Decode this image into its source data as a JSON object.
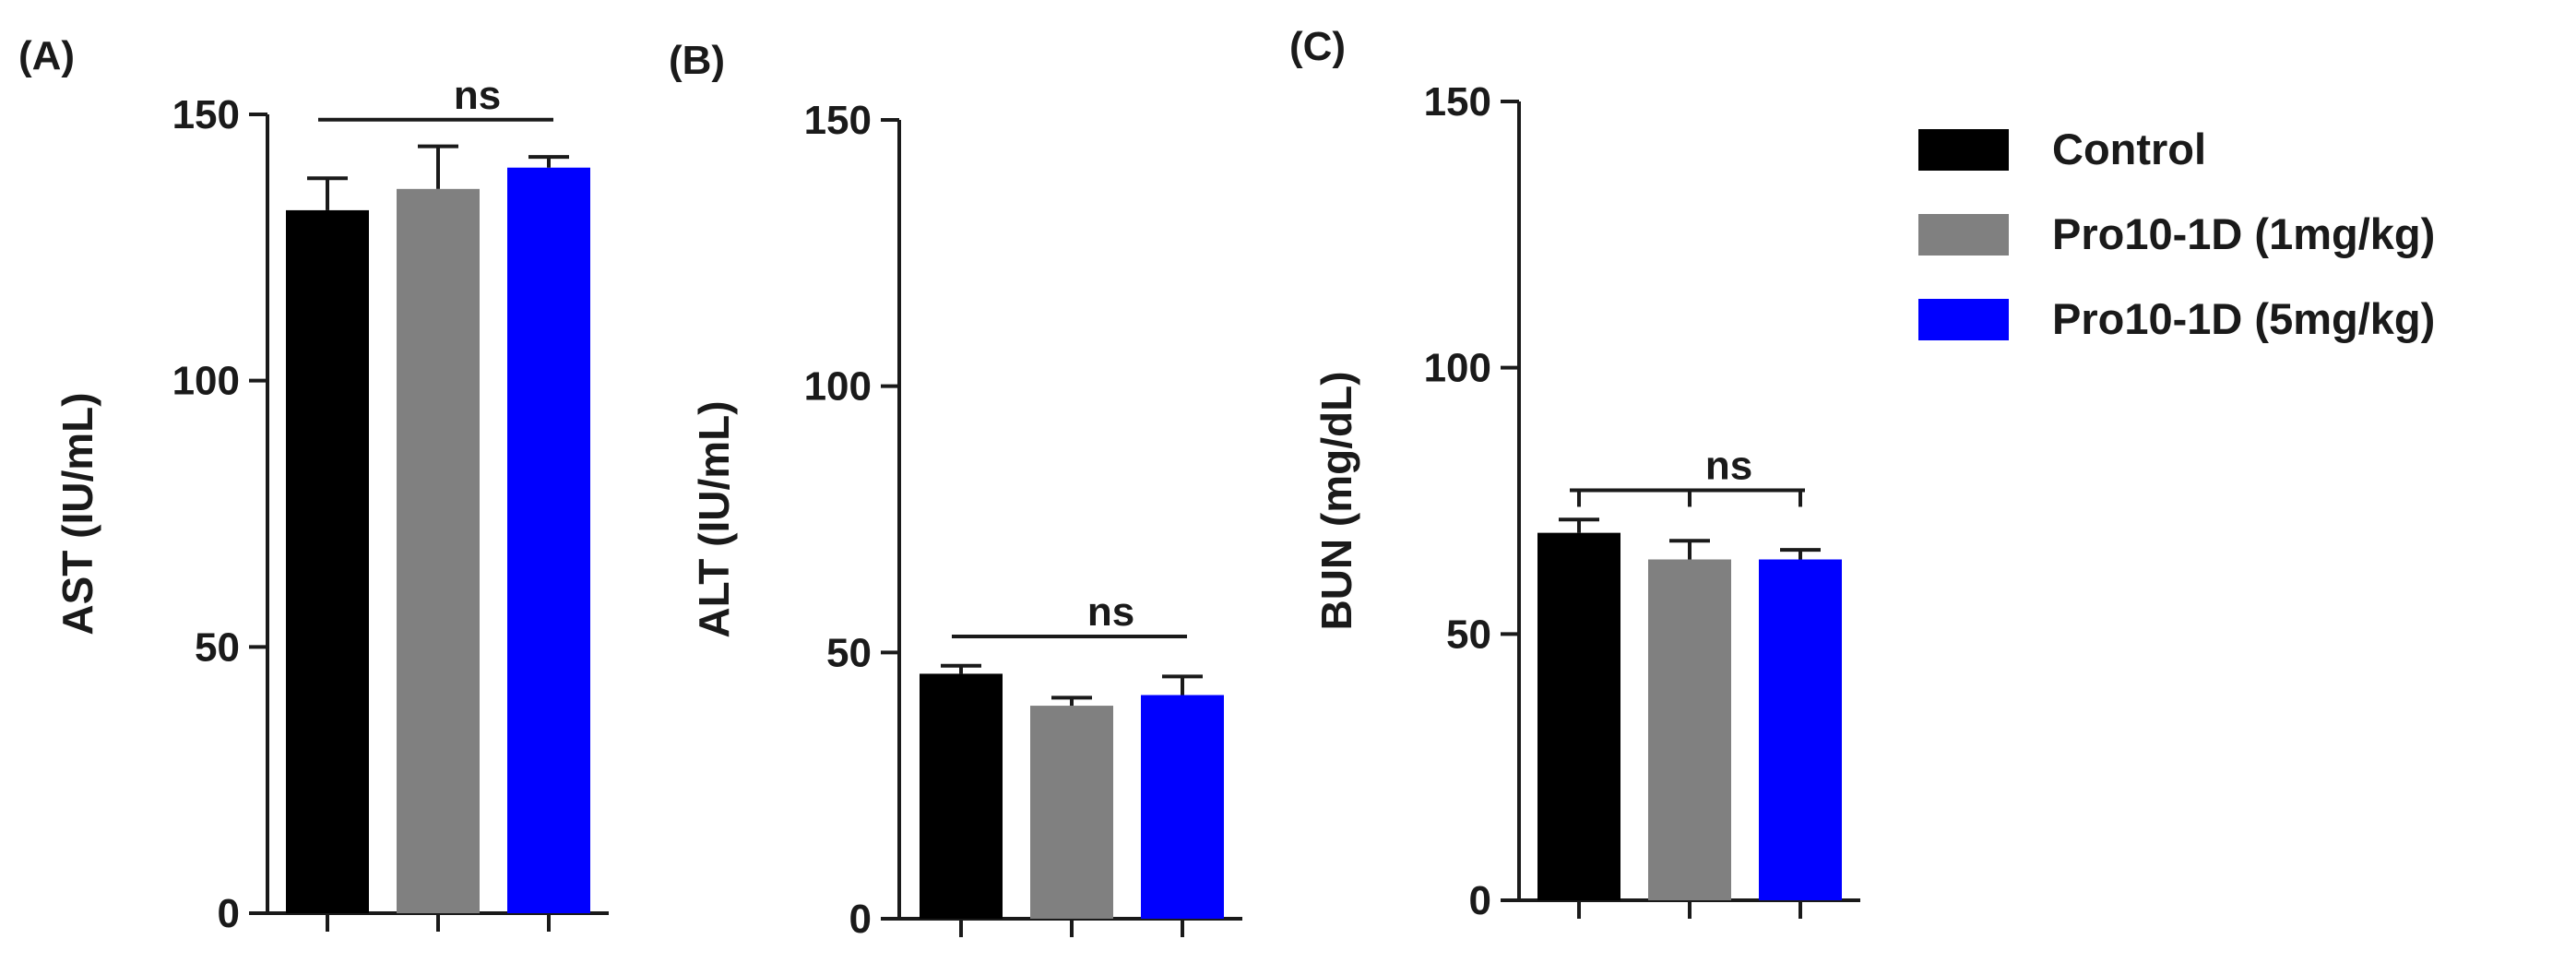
{
  "figure": {
    "legend": [
      {
        "label": "Control",
        "color": "#000000"
      },
      {
        "label": "Pro10-1D (1mg/kg)",
        "color": "#808080"
      },
      {
        "label": "Pro10-1D (5mg/kg)",
        "color": "#0000FF"
      }
    ]
  },
  "chart_data": [
    {
      "type": "bar",
      "panel_label": "(A)",
      "ylabel": "AST (IU/mL)",
      "ylim": [
        0,
        150
      ],
      "yticks": [
        0,
        50,
        100,
        150
      ],
      "categories": [
        "Control",
        "Pro10-1D (1mg/kg)",
        "Pro10-1D (5mg/kg)"
      ],
      "values": [
        132,
        136,
        140
      ],
      "errors": [
        6,
        8,
        2
      ],
      "colors": [
        "#000000",
        "#808080",
        "#0000FF"
      ],
      "significance": {
        "label": "ns",
        "from": 0,
        "to": 2,
        "y": 149
      }
    },
    {
      "type": "bar",
      "panel_label": "(B)",
      "ylabel": "ALT (IU/mL)",
      "ylim": [
        0,
        150
      ],
      "yticks": [
        0,
        50,
        100,
        150
      ],
      "categories": [
        "Control",
        "Pro10-1D (1mg/kg)",
        "Pro10-1D (5mg/kg)"
      ],
      "values": [
        46,
        40,
        42
      ],
      "errors": [
        1.5,
        1.5,
        3.5
      ],
      "colors": [
        "#000000",
        "#808080",
        "#0000FF"
      ],
      "significance": {
        "label": "ns",
        "from": 0,
        "to": 2,
        "y": 53
      }
    },
    {
      "type": "bar",
      "panel_label": "(C)",
      "ylabel": "BUN (mg/dL)",
      "ylim": [
        0,
        150
      ],
      "yticks": [
        0,
        50,
        100,
        150
      ],
      "categories": [
        "Control",
        "Pro10-1D (1mg/kg)",
        "Pro10-1D (5mg/kg)"
      ],
      "values": [
        69,
        64,
        64
      ],
      "errors": [
        2.5,
        3.5,
        1.8
      ],
      "colors": [
        "#000000",
        "#808080",
        "#0000FF"
      ],
      "significance": {
        "label": "ns",
        "from": 0,
        "to": 2,
        "y": 77
      }
    }
  ]
}
